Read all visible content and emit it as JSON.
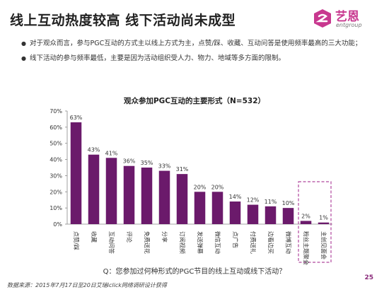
{
  "header": {
    "title": "线上互动热度较高 线下活动尚未成型"
  },
  "logo": {
    "name_cn": "艺恩",
    "name_en": "entgroup"
  },
  "bullets": [
    "对于观众而言，参与PGC互动的方式主以线上方式为主，点赞/踩、收藏、互动问答是使用频率最高的三大功能；",
    "线下活动的参与频率最低，主要是因为活动组织受人力、物力、地域等多方面的限制。"
  ],
  "chart_data": {
    "type": "bar",
    "title": "观众参加PGC互动的主要形式（N=532）",
    "categories": [
      "点赞/踩",
      "收藏",
      "互动问答",
      "评论",
      "免费送花",
      "分享",
      "订阅视频",
      "发送弹幕",
      "微信互动",
      "点广告",
      "付费送礼",
      "边看边买",
      "微博互动",
      "粉丝主题聚会",
      "主创见面会"
    ],
    "values": [
      63,
      43,
      41,
      36,
      35,
      33,
      31,
      20,
      20,
      14,
      12,
      11,
      10,
      2,
      1
    ],
    "value_labels": [
      "63%",
      "43%",
      "41%",
      "36%",
      "35%",
      "33%",
      "31%",
      "20%",
      "20%",
      "14%",
      "12%",
      "11%",
      "10%",
      "2%",
      "1%"
    ],
    "y_ticks": [
      "0%",
      "10%",
      "20%",
      "30%",
      "40%",
      "50%",
      "60%",
      "70%"
    ],
    "ylim": [
      0,
      70
    ],
    "bar_color": "#6b1a6b",
    "highlight_color": "#b0479e",
    "highlight_categories": [
      "粉丝主题聚会",
      "主创见面会"
    ],
    "grid": false
  },
  "footer": {
    "question": "Q：您参加过何种形式的PGC节目的线上互动或线下活动？",
    "source": "数据来源：2015年7月17日至20日艾瑞iclick网络调研设计获得",
    "page": "25"
  }
}
